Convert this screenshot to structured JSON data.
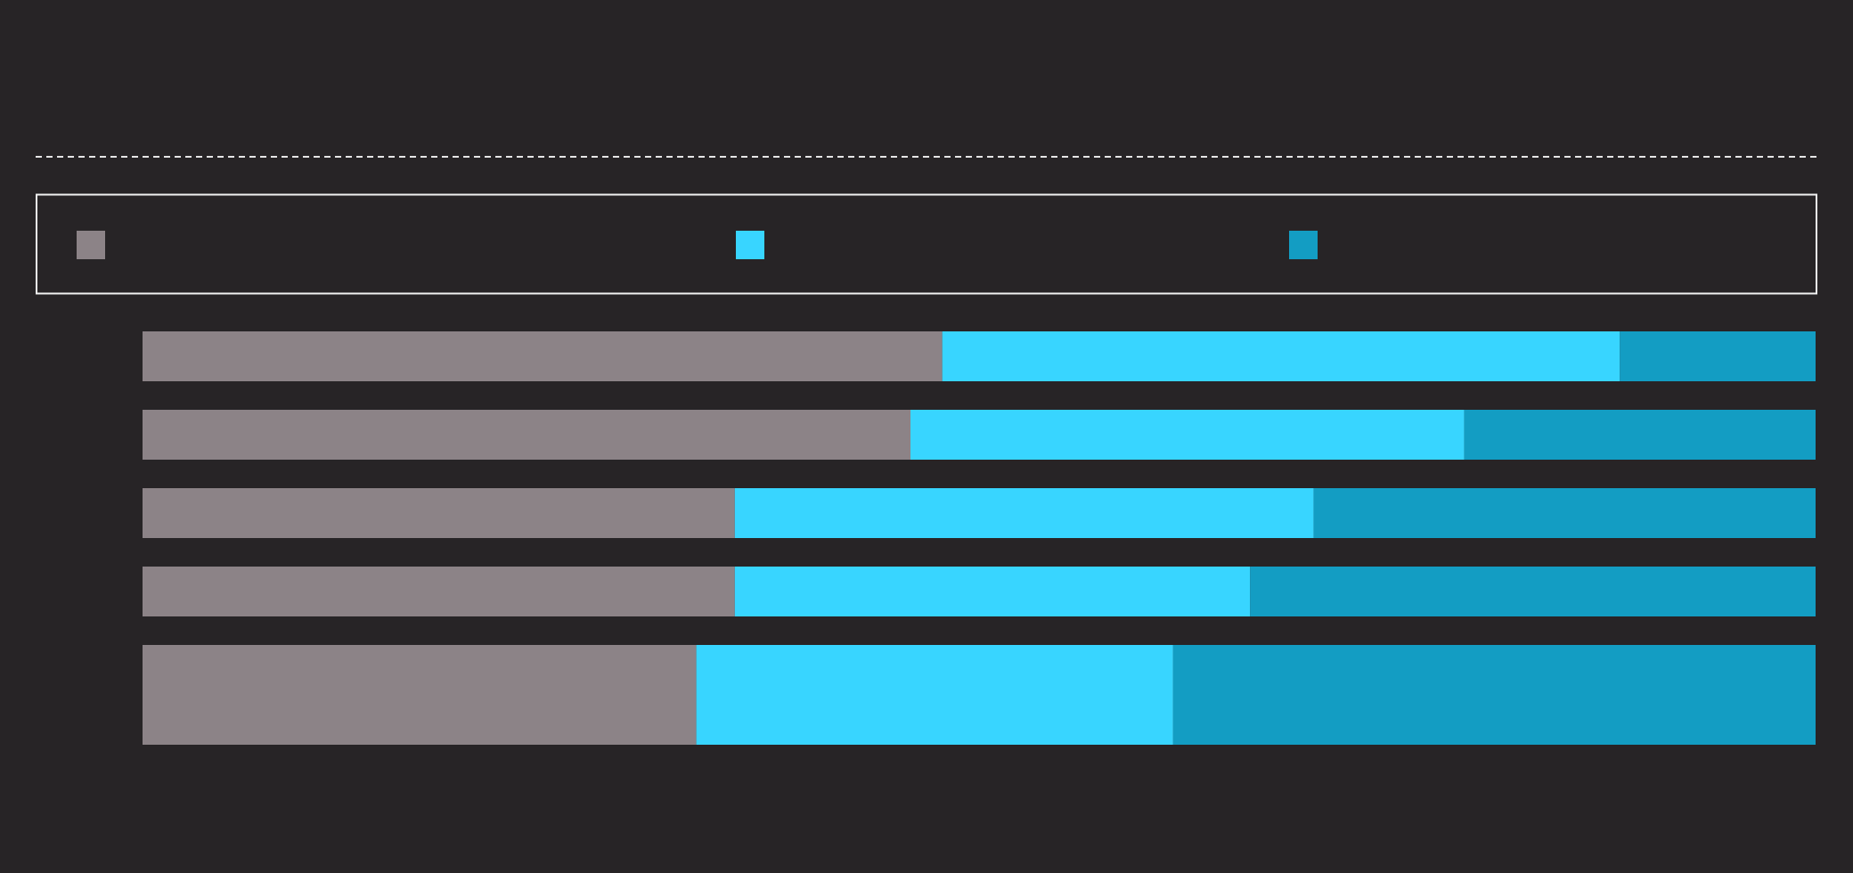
{
  "colors": {
    "background": "#272426",
    "rule": "#E6E6E6",
    "legend_border": "#F2F2F2",
    "series": [
      "#8C8387",
      "#38D5FF",
      "#139DC3"
    ]
  },
  "chart_data": {
    "type": "bar",
    "orientation": "horizontal",
    "stacked": "percent",
    "title": "",
    "xlabel": "",
    "ylabel": "",
    "grid": false,
    "legend_position": "top",
    "xlim": [
      0,
      100
    ],
    "categories": [
      "",
      "",
      "",
      "",
      ""
    ],
    "series": [
      {
        "values": [
          47.8,
          45.9,
          35.4,
          35.4,
          33.1
        ]
      },
      {
        "values": [
          40.5,
          33.1,
          34.6,
          30.8,
          28.5
        ]
      },
      {
        "values": [
          11.7,
          21.0,
          30.0,
          33.8,
          38.4
        ]
      }
    ]
  }
}
